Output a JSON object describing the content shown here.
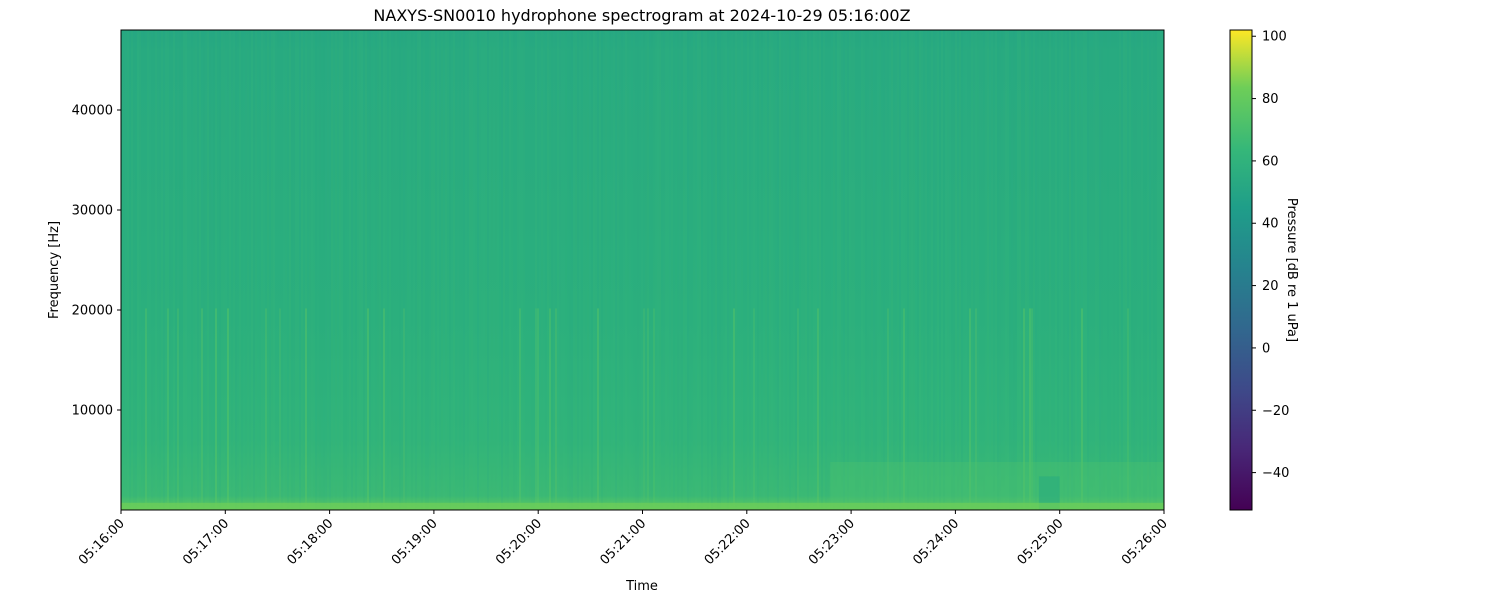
{
  "chart_data": {
    "type": "heatmap",
    "title": "NAXYS-SN0010 hydrophone spectrogram at 2024-10-29 05:16:00Z",
    "xlabel": "Time",
    "ylabel": "Frequency [Hz]",
    "x_ticks": [
      "05:16:00",
      "05:17:00",
      "05:18:00",
      "05:19:00",
      "05:20:00",
      "05:21:00",
      "05:22:00",
      "05:23:00",
      "05:24:00",
      "05:25:00",
      "05:26:00"
    ],
    "xlim": [
      "05:16:00",
      "05:26:00"
    ],
    "y_ticks": [
      10000,
      20000,
      30000,
      40000
    ],
    "ylim": [
      0,
      48000
    ],
    "colorbar": {
      "label": "Pressure [dB re 1 uPa]",
      "ticks": [
        -40,
        -20,
        0,
        20,
        40,
        60,
        80,
        100
      ],
      "zlim": [
        -52,
        102
      ],
      "colormap": "viridis"
    },
    "grid": false
  }
}
